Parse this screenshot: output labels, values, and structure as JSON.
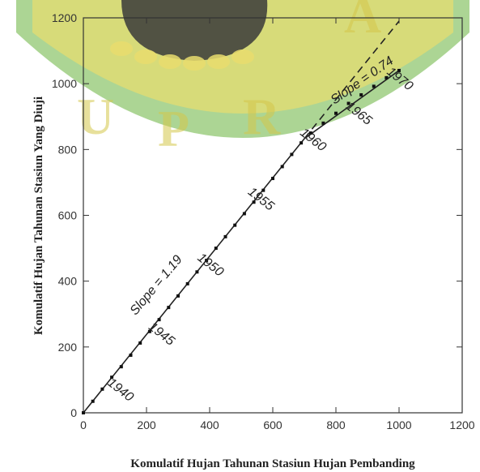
{
  "watermark": {
    "letters": [
      "U",
      "P",
      "R",
      "A"
    ],
    "colors": {
      "green": "#7fbf5a",
      "yellow": "#e9dd6e",
      "dark": "#3a3a3a"
    }
  },
  "chart_data": {
    "type": "line",
    "xlabel": "Komulatif Hujan Tahunan Stasiun Hujan Pembanding",
    "ylabel": "Komulatif Hujan Tahunan Stasiun Yang Diuji",
    "xlim": [
      0,
      1200
    ],
    "ylim": [
      0,
      1200
    ],
    "x_ticks": [
      "0",
      "200",
      "400",
      "600",
      "800",
      "1000",
      "1200"
    ],
    "y_ticks": [
      "0",
      "200",
      "400",
      "600",
      "800",
      "1000",
      "1200"
    ],
    "grid": false,
    "series": [
      {
        "points": [
          [
            0,
            0
          ],
          [
            30,
            35
          ],
          [
            60,
            72
          ],
          [
            90,
            108
          ],
          [
            120,
            140
          ],
          [
            150,
            175
          ],
          [
            180,
            212
          ],
          [
            210,
            247
          ],
          [
            240,
            283
          ],
          [
            270,
            320
          ],
          [
            300,
            355
          ],
          [
            330,
            392
          ],
          [
            360,
            428
          ],
          [
            390,
            463
          ],
          [
            420,
            500
          ],
          [
            450,
            535
          ],
          [
            480,
            570
          ],
          [
            510,
            605
          ],
          [
            540,
            640
          ],
          [
            570,
            676
          ],
          [
            600,
            712
          ],
          [
            630,
            748
          ],
          [
            660,
            785
          ],
          [
            690,
            820
          ],
          [
            720,
            850
          ],
          [
            760,
            880
          ],
          [
            800,
            910
          ],
          [
            840,
            940
          ],
          [
            880,
            966
          ],
          [
            920,
            992
          ],
          [
            960,
            1018
          ],
          [
            1000,
            1040
          ]
        ]
      }
    ],
    "fit_lines": [
      {
        "slope": 1.19,
        "from": [
          0,
          0
        ],
        "to": [
          700,
          833
        ],
        "style": "solid"
      },
      {
        "slope": 1.19,
        "from": [
          700,
          833
        ],
        "to": [
          1000,
          1190
        ],
        "style": "dashed"
      },
      {
        "slope": 0.74,
        "from": [
          700,
          833
        ],
        "to": [
          1000,
          1040
        ],
        "style": "solid"
      }
    ],
    "annotations": [
      {
        "text": "Slope = 1.19",
        "x": 240,
        "y": 380,
        "angle": -50
      },
      {
        "text": "Slope = 0.74",
        "x": 890,
        "y": 1000,
        "angle": -35
      },
      {
        "text": "1940",
        "x": 110,
        "y": 60,
        "angle": 38
      },
      {
        "text": "1945",
        "x": 240,
        "y": 230,
        "angle": 38
      },
      {
        "text": "1950",
        "x": 395,
        "y": 440,
        "angle": 38
      },
      {
        "text": "1955",
        "x": 555,
        "y": 640,
        "angle": 38
      },
      {
        "text": "1960",
        "x": 720,
        "y": 820,
        "angle": 38
      },
      {
        "text": "1965",
        "x": 865,
        "y": 900,
        "angle": 38
      },
      {
        "text": "1970",
        "x": 995,
        "y": 1005,
        "angle": 38
      }
    ]
  }
}
